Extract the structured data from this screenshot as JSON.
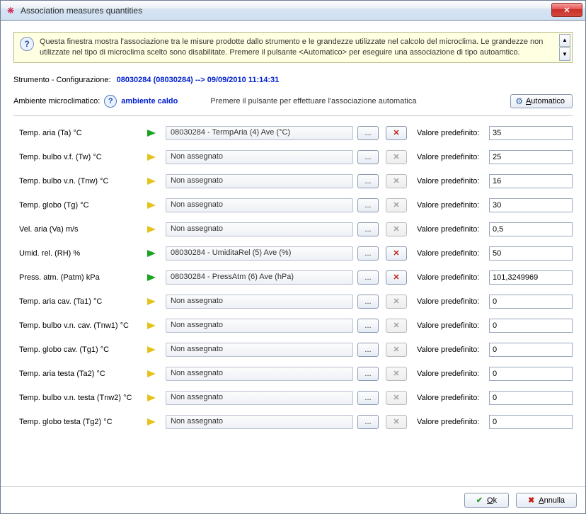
{
  "window": {
    "title": "Association measures quantities"
  },
  "info": {
    "text": "Questa finestra mostra l'associazione tra le misure prodotte dallo strumento e le grandezze utilizzate nel calcolo del microclima. Le grandezze non utilizzate nel tipo di microclima scelto sono disabilitate. Premere il pulsante <Automatico> per eseguire una associazione di tipo autoamtico."
  },
  "header": {
    "instrument_label": "Strumento - Configurazione:",
    "instrument_value": "08030284 (08030284) --> 09/09/2010 11:14:31",
    "env_label": "Ambiente microclimatico:",
    "env_value": "ambiente caldo",
    "auto_hint": "Premere il pulsante per effettuare l'associazione automatica",
    "auto_btn": "Automatico"
  },
  "labels": {
    "default_value": "Valore predefinito:",
    "browse": "...",
    "ok": "Ok",
    "cancel": "Annulla"
  },
  "flags": {
    "green": "#1aa51f",
    "yellow": "#e6c21d"
  },
  "rows": [
    {
      "label": "Temp. aria (Ta) °C",
      "flag": "green",
      "assigned": "08030284 - TermpAria (4) Ave (°C)",
      "default": "35"
    },
    {
      "label": "Temp. bulbo v.f. (Tw) °C",
      "flag": "yellow",
      "assigned": "Non assegnato",
      "default": "25"
    },
    {
      "label": "Temp. bulbo v.n. (Tnw) °C",
      "flag": "yellow",
      "assigned": "Non assegnato",
      "default": "16"
    },
    {
      "label": "Temp. globo (Tg) °C",
      "flag": "yellow",
      "assigned": "Non assegnato",
      "default": "30"
    },
    {
      "label": "Vel. aria (Va) m/s",
      "flag": "yellow",
      "assigned": "Non assegnato",
      "default": "0,5"
    },
    {
      "label": "Umid. rel. (RH) %",
      "flag": "green",
      "assigned": "08030284 - UmiditaRel (5) Ave (%)",
      "default": "50"
    },
    {
      "label": "Press. atm. (Patm) kPa",
      "flag": "green",
      "assigned": "08030284 - PressAtm (6) Ave (hPa)",
      "default": "101,3249969"
    },
    {
      "label": "Temp. aria cav. (Ta1) °C",
      "flag": "yellow",
      "assigned": "Non assegnato",
      "default": "0"
    },
    {
      "label": "Temp. bulbo v.n. cav. (Tnw1) °C",
      "flag": "yellow",
      "assigned": "Non assegnato",
      "default": "0"
    },
    {
      "label": "Temp. globo cav. (Tg1) °C",
      "flag": "yellow",
      "assigned": "Non assegnato",
      "default": "0"
    },
    {
      "label": "Temp. aria testa (Ta2) °C",
      "flag": "yellow",
      "assigned": "Non assegnato",
      "default": "0"
    },
    {
      "label": "Temp. bulbo v.n. testa (Tnw2) °C",
      "flag": "yellow",
      "assigned": "Non assegnato",
      "default": "0"
    },
    {
      "label": "Temp. globo testa (Tg2) °C",
      "flag": "yellow",
      "assigned": "Non assegnato",
      "default": "0"
    }
  ]
}
